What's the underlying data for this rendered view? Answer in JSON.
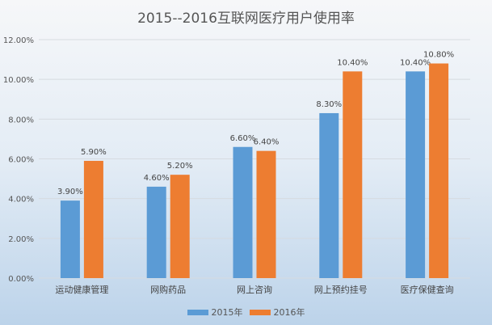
{
  "chart_data": {
    "type": "bar",
    "title": "2015--2016互联网医疗用户使用率",
    "categories": [
      "运动健康管理",
      "网购药品",
      "网上咨询",
      "网上预约挂号",
      "医疗保健查询"
    ],
    "series": [
      {
        "name": "2015年",
        "color": "#5b9bd5",
        "values": [
          3.9,
          4.6,
          6.6,
          8.3,
          10.4
        ],
        "labels": [
          "3.90%",
          "4.60%",
          "6.60%",
          "8.30%",
          "10.40%"
        ]
      },
      {
        "name": "2016年",
        "color": "#ed7d31",
        "values": [
          5.9,
          5.2,
          6.4,
          10.4,
          10.8
        ],
        "labels": [
          "5.90%",
          "5.20%",
          "6.40%",
          "10.40%",
          "10.80%"
        ]
      }
    ],
    "ylim": [
      0,
      12
    ],
    "yticks": [
      0,
      2,
      4,
      6,
      8,
      10,
      12
    ],
    "ytick_labels": [
      "0.00%",
      "2.00%",
      "4.00%",
      "6.00%",
      "8.00%",
      "10.00%",
      "12.00%"
    ],
    "xlabel": "",
    "ylabel": "",
    "grid": true,
    "legend": "bottom"
  }
}
